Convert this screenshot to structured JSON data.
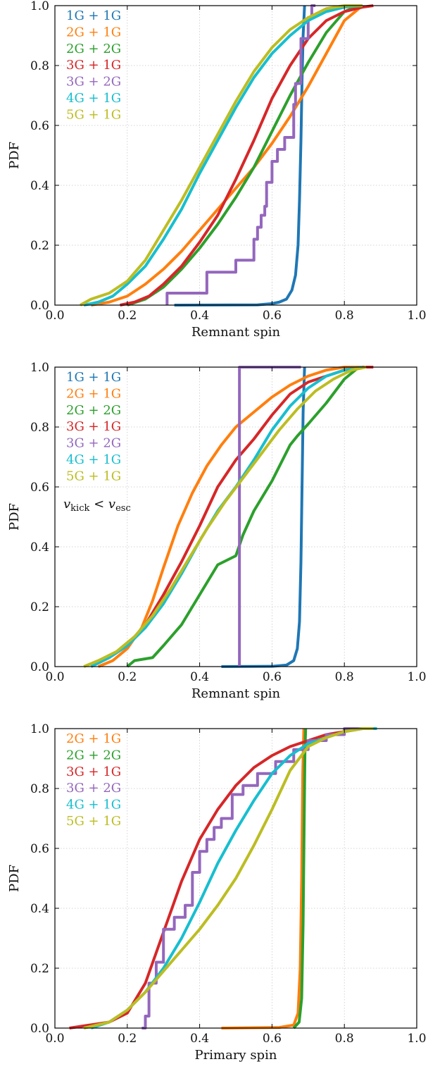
{
  "chart_data": [
    {
      "type": "line",
      "xlabel": "Remnant spin",
      "ylabel": "PDF",
      "xlim": [
        0.0,
        1.0
      ],
      "ylim": [
        0.0,
        1.0
      ],
      "xticks": [
        "0.0",
        "0.2",
        "0.4",
        "0.6",
        "0.8",
        "1.0"
      ],
      "yticks": [
        "0.0",
        "0.2",
        "0.4",
        "0.6",
        "0.8",
        "1.0"
      ],
      "grid": true,
      "legend_position": "top-left",
      "annotation": "",
      "series": [
        {
          "name": "1G + 1G",
          "color": "#1f77b4",
          "x": [
            0.33,
            0.56,
            0.6,
            0.62,
            0.64,
            0.655,
            0.665,
            0.672,
            0.676,
            0.68,
            0.683,
            0.686,
            0.69
          ],
          "y": [
            0.0,
            0.001,
            0.005,
            0.01,
            0.02,
            0.05,
            0.1,
            0.2,
            0.35,
            0.55,
            0.75,
            0.9,
            1.0
          ]
        },
        {
          "name": "2G + 1G",
          "color": "#ff7f0e",
          "x": [
            0.1,
            0.15,
            0.2,
            0.25,
            0.3,
            0.35,
            0.4,
            0.45,
            0.5,
            0.55,
            0.6,
            0.65,
            0.7,
            0.75,
            0.8,
            0.85
          ],
          "y": [
            0.0,
            0.01,
            0.03,
            0.07,
            0.12,
            0.18,
            0.25,
            0.32,
            0.39,
            0.46,
            0.54,
            0.63,
            0.73,
            0.84,
            0.95,
            1.0
          ]
        },
        {
          "name": "2G + 2G",
          "color": "#2ca02c",
          "x": [
            0.2,
            0.25,
            0.3,
            0.35,
            0.4,
            0.45,
            0.5,
            0.55,
            0.6,
            0.65,
            0.7,
            0.75,
            0.8,
            0.84
          ],
          "y": [
            0.0,
            0.02,
            0.06,
            0.12,
            0.19,
            0.27,
            0.36,
            0.46,
            0.58,
            0.7,
            0.81,
            0.91,
            0.98,
            1.0
          ]
        },
        {
          "name": "3G + 1G",
          "color": "#d62728",
          "x": [
            0.18,
            0.22,
            0.26,
            0.3,
            0.35,
            0.4,
            0.45,
            0.5,
            0.55,
            0.6,
            0.65,
            0.7,
            0.75,
            0.8,
            0.85,
            0.88
          ],
          "y": [
            0.0,
            0.01,
            0.03,
            0.07,
            0.13,
            0.21,
            0.3,
            0.42,
            0.55,
            0.69,
            0.8,
            0.89,
            0.95,
            0.98,
            0.995,
            1.0
          ]
        },
        {
          "name": "3G + 2G",
          "color": "#9467bd",
          "step": true,
          "x": [
            0.31,
            0.31,
            0.42,
            0.5,
            0.55,
            0.56,
            0.57,
            0.58,
            0.585,
            0.6,
            0.615,
            0.635,
            0.66,
            0.665,
            0.68,
            0.7,
            0.71,
            0.72
          ],
          "y": [
            0.0,
            0.04,
            0.11,
            0.15,
            0.22,
            0.26,
            0.3,
            0.33,
            0.41,
            0.48,
            0.52,
            0.56,
            0.67,
            0.74,
            0.89,
            0.96,
            1.0,
            1.0
          ]
        },
        {
          "name": "4G + 1G",
          "color": "#17becf",
          "x": [
            0.08,
            0.12,
            0.16,
            0.2,
            0.25,
            0.3,
            0.35,
            0.4,
            0.45,
            0.5,
            0.55,
            0.6,
            0.65,
            0.7,
            0.75,
            0.8,
            0.85
          ],
          "y": [
            0.0,
            0.01,
            0.03,
            0.07,
            0.13,
            0.22,
            0.32,
            0.44,
            0.55,
            0.66,
            0.76,
            0.84,
            0.9,
            0.95,
            0.98,
            0.995,
            1.0
          ]
        },
        {
          "name": "5G + 1G",
          "color": "#bcbd22",
          "x": [
            0.07,
            0.1,
            0.15,
            0.2,
            0.25,
            0.3,
            0.35,
            0.4,
            0.45,
            0.5,
            0.55,
            0.6,
            0.65,
            0.7,
            0.75,
            0.8,
            0.85
          ],
          "y": [
            0.0,
            0.02,
            0.04,
            0.08,
            0.15,
            0.25,
            0.35,
            0.46,
            0.57,
            0.68,
            0.78,
            0.86,
            0.92,
            0.96,
            0.99,
            1.0,
            1.0
          ]
        }
      ]
    },
    {
      "type": "line",
      "xlabel": "Remnant spin",
      "ylabel": "PDF",
      "xlim": [
        0.0,
        1.0
      ],
      "ylim": [
        0.0,
        1.0
      ],
      "xticks": [
        "0.0",
        "0.2",
        "0.4",
        "0.6",
        "0.8",
        "1.0"
      ],
      "yticks": [
        "0.0",
        "0.2",
        "0.4",
        "0.6",
        "0.8",
        "1.0"
      ],
      "grid": true,
      "legend_position": "top-left",
      "annotation": "v_kick < v_esc",
      "series": [
        {
          "name": "1G + 1G",
          "color": "#1f77b4",
          "x": [
            0.46,
            0.6,
            0.64,
            0.66,
            0.67,
            0.676,
            0.68,
            0.683,
            0.686,
            0.69
          ],
          "y": [
            0.0,
            0.001,
            0.005,
            0.02,
            0.06,
            0.15,
            0.35,
            0.6,
            0.85,
            1.0
          ]
        },
        {
          "name": "2G + 1G",
          "color": "#ff7f0e",
          "x": [
            0.12,
            0.16,
            0.2,
            0.24,
            0.27,
            0.3,
            0.34,
            0.38,
            0.42,
            0.46,
            0.5,
            0.55,
            0.6,
            0.65,
            0.7,
            0.75,
            0.8,
            0.85
          ],
          "y": [
            0.0,
            0.02,
            0.06,
            0.13,
            0.22,
            0.33,
            0.47,
            0.58,
            0.67,
            0.74,
            0.8,
            0.85,
            0.9,
            0.94,
            0.97,
            0.99,
            1.0,
            1.0
          ]
        },
        {
          "name": "2G + 2G",
          "color": "#2ca02c",
          "x": [
            0.2,
            0.22,
            0.27,
            0.3,
            0.35,
            0.4,
            0.45,
            0.5,
            0.52,
            0.55,
            0.6,
            0.65,
            0.67,
            0.7,
            0.75,
            0.8,
            0.84
          ],
          "y": [
            0.0,
            0.02,
            0.03,
            0.07,
            0.14,
            0.24,
            0.34,
            0.37,
            0.44,
            0.52,
            0.62,
            0.74,
            0.77,
            0.81,
            0.88,
            0.96,
            1.0
          ]
        },
        {
          "name": "3G + 1G",
          "color": "#d62728",
          "x": [
            0.1,
            0.15,
            0.2,
            0.25,
            0.3,
            0.35,
            0.4,
            0.45,
            0.5,
            0.55,
            0.6,
            0.65,
            0.7,
            0.75,
            0.8,
            0.85,
            0.88
          ],
          "y": [
            0.0,
            0.03,
            0.07,
            0.14,
            0.24,
            0.35,
            0.47,
            0.6,
            0.69,
            0.76,
            0.84,
            0.91,
            0.95,
            0.97,
            0.99,
            1.0,
            1.0
          ]
        },
        {
          "name": "3G + 2G",
          "color": "#9467bd",
          "step": true,
          "x": [
            0.51,
            0.51,
            0.68,
            0.68
          ],
          "y": [
            0.0,
            1.0,
            1.0,
            1.0
          ]
        },
        {
          "name": "4G + 1G",
          "color": "#17becf",
          "x": [
            0.1,
            0.15,
            0.2,
            0.25,
            0.3,
            0.35,
            0.4,
            0.45,
            0.5,
            0.55,
            0.6,
            0.65,
            0.7,
            0.75,
            0.8,
            0.85
          ],
          "y": [
            0.0,
            0.03,
            0.07,
            0.13,
            0.21,
            0.31,
            0.42,
            0.52,
            0.6,
            0.69,
            0.79,
            0.87,
            0.93,
            0.97,
            0.99,
            1.0
          ]
        },
        {
          "name": "5G + 1G",
          "color": "#bcbd22",
          "x": [
            0.08,
            0.12,
            0.17,
            0.22,
            0.27,
            0.32,
            0.37,
            0.42,
            0.47,
            0.52,
            0.57,
            0.62,
            0.67,
            0.72,
            0.77,
            0.82,
            0.86
          ],
          "y": [
            0.0,
            0.02,
            0.05,
            0.1,
            0.17,
            0.26,
            0.36,
            0.46,
            0.55,
            0.63,
            0.71,
            0.79,
            0.86,
            0.92,
            0.96,
            0.99,
            1.0
          ]
        }
      ]
    },
    {
      "type": "line",
      "xlabel": "Primary spin",
      "ylabel": "PDF",
      "xlim": [
        0.0,
        1.0
      ],
      "ylim": [
        0.0,
        1.0
      ],
      "xticks": [
        "0.0",
        "0.2",
        "0.4",
        "0.6",
        "0.8",
        "1.0"
      ],
      "yticks": [
        "0.0",
        "0.2",
        "0.4",
        "0.6",
        "0.8",
        "1.0"
      ],
      "grid": true,
      "legend_position": "top-left",
      "annotation": "",
      "series": [
        {
          "name": "2G + 1G",
          "color": "#ff7f0e",
          "x": [
            0.46,
            0.62,
            0.66,
            0.672,
            0.678,
            0.682,
            0.685,
            0.688
          ],
          "y": [
            0.0,
            0.002,
            0.01,
            0.05,
            0.2,
            0.5,
            0.85,
            1.0
          ]
        },
        {
          "name": "2G + 2G",
          "color": "#2ca02c",
          "x": [
            0.66,
            0.675,
            0.682,
            0.686,
            0.689,
            0.691,
            0.693
          ],
          "y": [
            0.0,
            0.02,
            0.1,
            0.35,
            0.7,
            0.92,
            1.0
          ]
        },
        {
          "name": "3G + 1G",
          "color": "#d62728",
          "x": [
            0.04,
            0.15,
            0.2,
            0.25,
            0.3,
            0.35,
            0.4,
            0.45,
            0.5,
            0.55,
            0.6,
            0.65,
            0.7,
            0.75,
            0.8,
            0.85
          ],
          "y": [
            0.0,
            0.02,
            0.05,
            0.15,
            0.32,
            0.49,
            0.63,
            0.73,
            0.81,
            0.87,
            0.91,
            0.94,
            0.96,
            0.98,
            0.99,
            1.0
          ]
        },
        {
          "name": "3G + 2G",
          "color": "#9467bd",
          "step": true,
          "x": [
            0.24,
            0.25,
            0.26,
            0.28,
            0.3,
            0.33,
            0.36,
            0.38,
            0.4,
            0.42,
            0.44,
            0.46,
            0.49,
            0.52,
            0.56,
            0.61,
            0.66,
            0.7,
            0.75,
            0.8,
            0.86
          ],
          "y": [
            0.0,
            0.04,
            0.15,
            0.22,
            0.33,
            0.37,
            0.41,
            0.52,
            0.59,
            0.63,
            0.67,
            0.7,
            0.78,
            0.81,
            0.85,
            0.89,
            0.93,
            0.96,
            0.98,
            1.0,
            1.0
          ]
        },
        {
          "name": "4G + 1G",
          "color": "#17becf",
          "x": [
            0.1,
            0.15,
            0.2,
            0.25,
            0.3,
            0.35,
            0.4,
            0.45,
            0.5,
            0.55,
            0.6,
            0.65,
            0.7,
            0.75,
            0.8,
            0.85,
            0.89
          ],
          "y": [
            0.0,
            0.02,
            0.06,
            0.12,
            0.2,
            0.3,
            0.42,
            0.55,
            0.66,
            0.76,
            0.85,
            0.91,
            0.95,
            0.97,
            0.99,
            1.0,
            1.0
          ]
        },
        {
          "name": "5G + 1G",
          "color": "#bcbd22",
          "x": [
            0.08,
            0.15,
            0.2,
            0.25,
            0.3,
            0.35,
            0.4,
            0.45,
            0.5,
            0.55,
            0.6,
            0.65,
            0.7,
            0.75,
            0.8,
            0.85,
            0.88
          ],
          "y": [
            0.0,
            0.02,
            0.06,
            0.12,
            0.19,
            0.26,
            0.33,
            0.41,
            0.5,
            0.61,
            0.73,
            0.86,
            0.94,
            0.97,
            0.99,
            1.0,
            1.0
          ]
        }
      ]
    }
  ]
}
